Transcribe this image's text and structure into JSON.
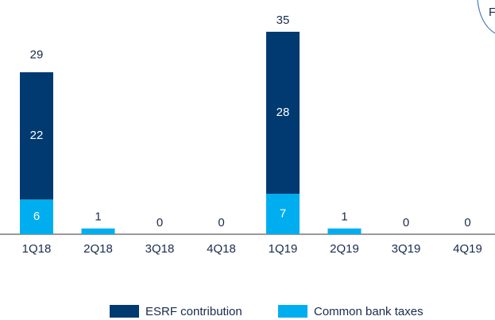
{
  "chart_data": {
    "type": "bar",
    "stacked": true,
    "categories": [
      "1Q18",
      "2Q18",
      "3Q18",
      "4Q18",
      "1Q19",
      "2Q19",
      "3Q19",
      "4Q19"
    ],
    "series": [
      {
        "name": "ESRF contribution",
        "color": "#003a70",
        "values": [
          22,
          0,
          0,
          0,
          28,
          0,
          0,
          0
        ]
      },
      {
        "name": "Common bank taxes",
        "color": "#00aeef",
        "values": [
          6,
          1,
          0,
          0,
          7,
          1,
          0,
          0
        ]
      }
    ],
    "totals": [
      29,
      1,
      0,
      0,
      35,
      1,
      0,
      0
    ],
    "ylim": [
      0,
      35
    ],
    "annotation": "F",
    "legend": "bottom"
  }
}
